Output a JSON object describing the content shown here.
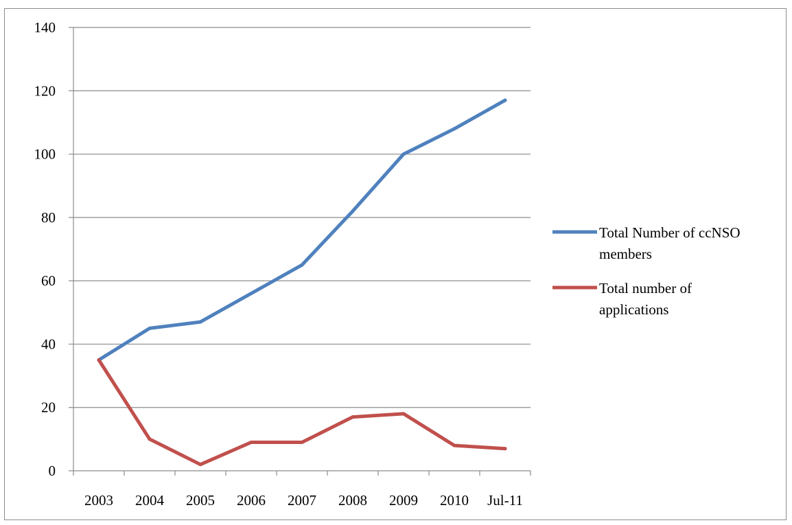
{
  "chart_data": {
    "type": "line",
    "categories": [
      "2003",
      "2004",
      "2005",
      "2006",
      "2007",
      "2008",
      "2009",
      "2010",
      "Jul-11"
    ],
    "series": [
      {
        "name": "Total Number of ccNSO members",
        "legend_lines": [
          "Total Number of ccNSO",
          "members"
        ],
        "color": "#4F81BD",
        "values": [
          35,
          45,
          47,
          56,
          65,
          82,
          100,
          108,
          117
        ]
      },
      {
        "name": "Total number of applications",
        "legend_lines": [
          "Total number of",
          "applications"
        ],
        "color": "#C0504D",
        "values": [
          35,
          10,
          2,
          9,
          9,
          17,
          18,
          8,
          7
        ]
      }
    ],
    "ylim": [
      0,
      140
    ],
    "yticks": [
      0,
      20,
      40,
      60,
      80,
      100,
      120,
      140
    ],
    "grid": true,
    "legend_position": "right"
  }
}
